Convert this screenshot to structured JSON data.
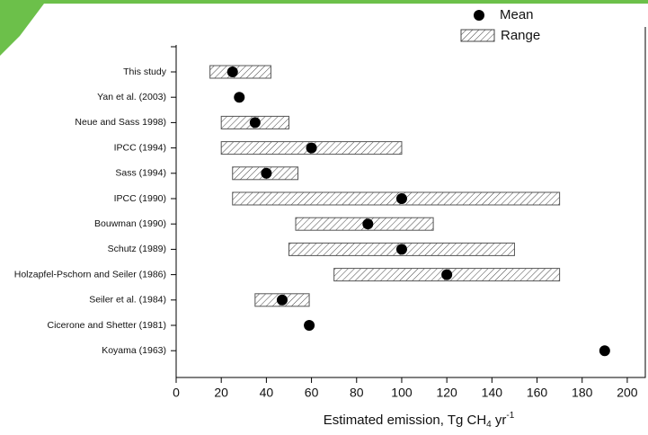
{
  "chart_data": {
    "type": "range-dot",
    "x_label": [
      "Estimated emission, Tg CH",
      "4",
      " yr",
      "-1"
    ],
    "categories": [
      "This study",
      "Yan et al. (2003)",
      "Neue and Sass 1998)",
      "IPCC (1994)",
      "Sass (1994)",
      "IPCC (1990)",
      "Bouwman (1990)",
      "Schutz (1989)",
      "Holzapfel-Pschorn and Seiler (1986)",
      "Seiler et al. (1984)",
      "Cicerone and Shetter (1981)",
      "Koyama (1963)"
    ],
    "series": [
      {
        "name": "Mean",
        "color": "#000000",
        "values": [
          25,
          28,
          35,
          60,
          40,
          100,
          85,
          100,
          120,
          47,
          59,
          190
        ]
      },
      {
        "name": "Range",
        "color": "#555555",
        "low": [
          15,
          null,
          20,
          20,
          25,
          25,
          53,
          50,
          70,
          35,
          null,
          null
        ],
        "high": [
          42,
          null,
          50,
          100,
          54,
          170,
          114,
          150,
          170,
          59,
          null,
          null
        ]
      }
    ],
    "xlim": [
      0,
      208
    ],
    "xticks": [
      0,
      20,
      40,
      60,
      80,
      100,
      120,
      140,
      160,
      180,
      200
    ]
  }
}
